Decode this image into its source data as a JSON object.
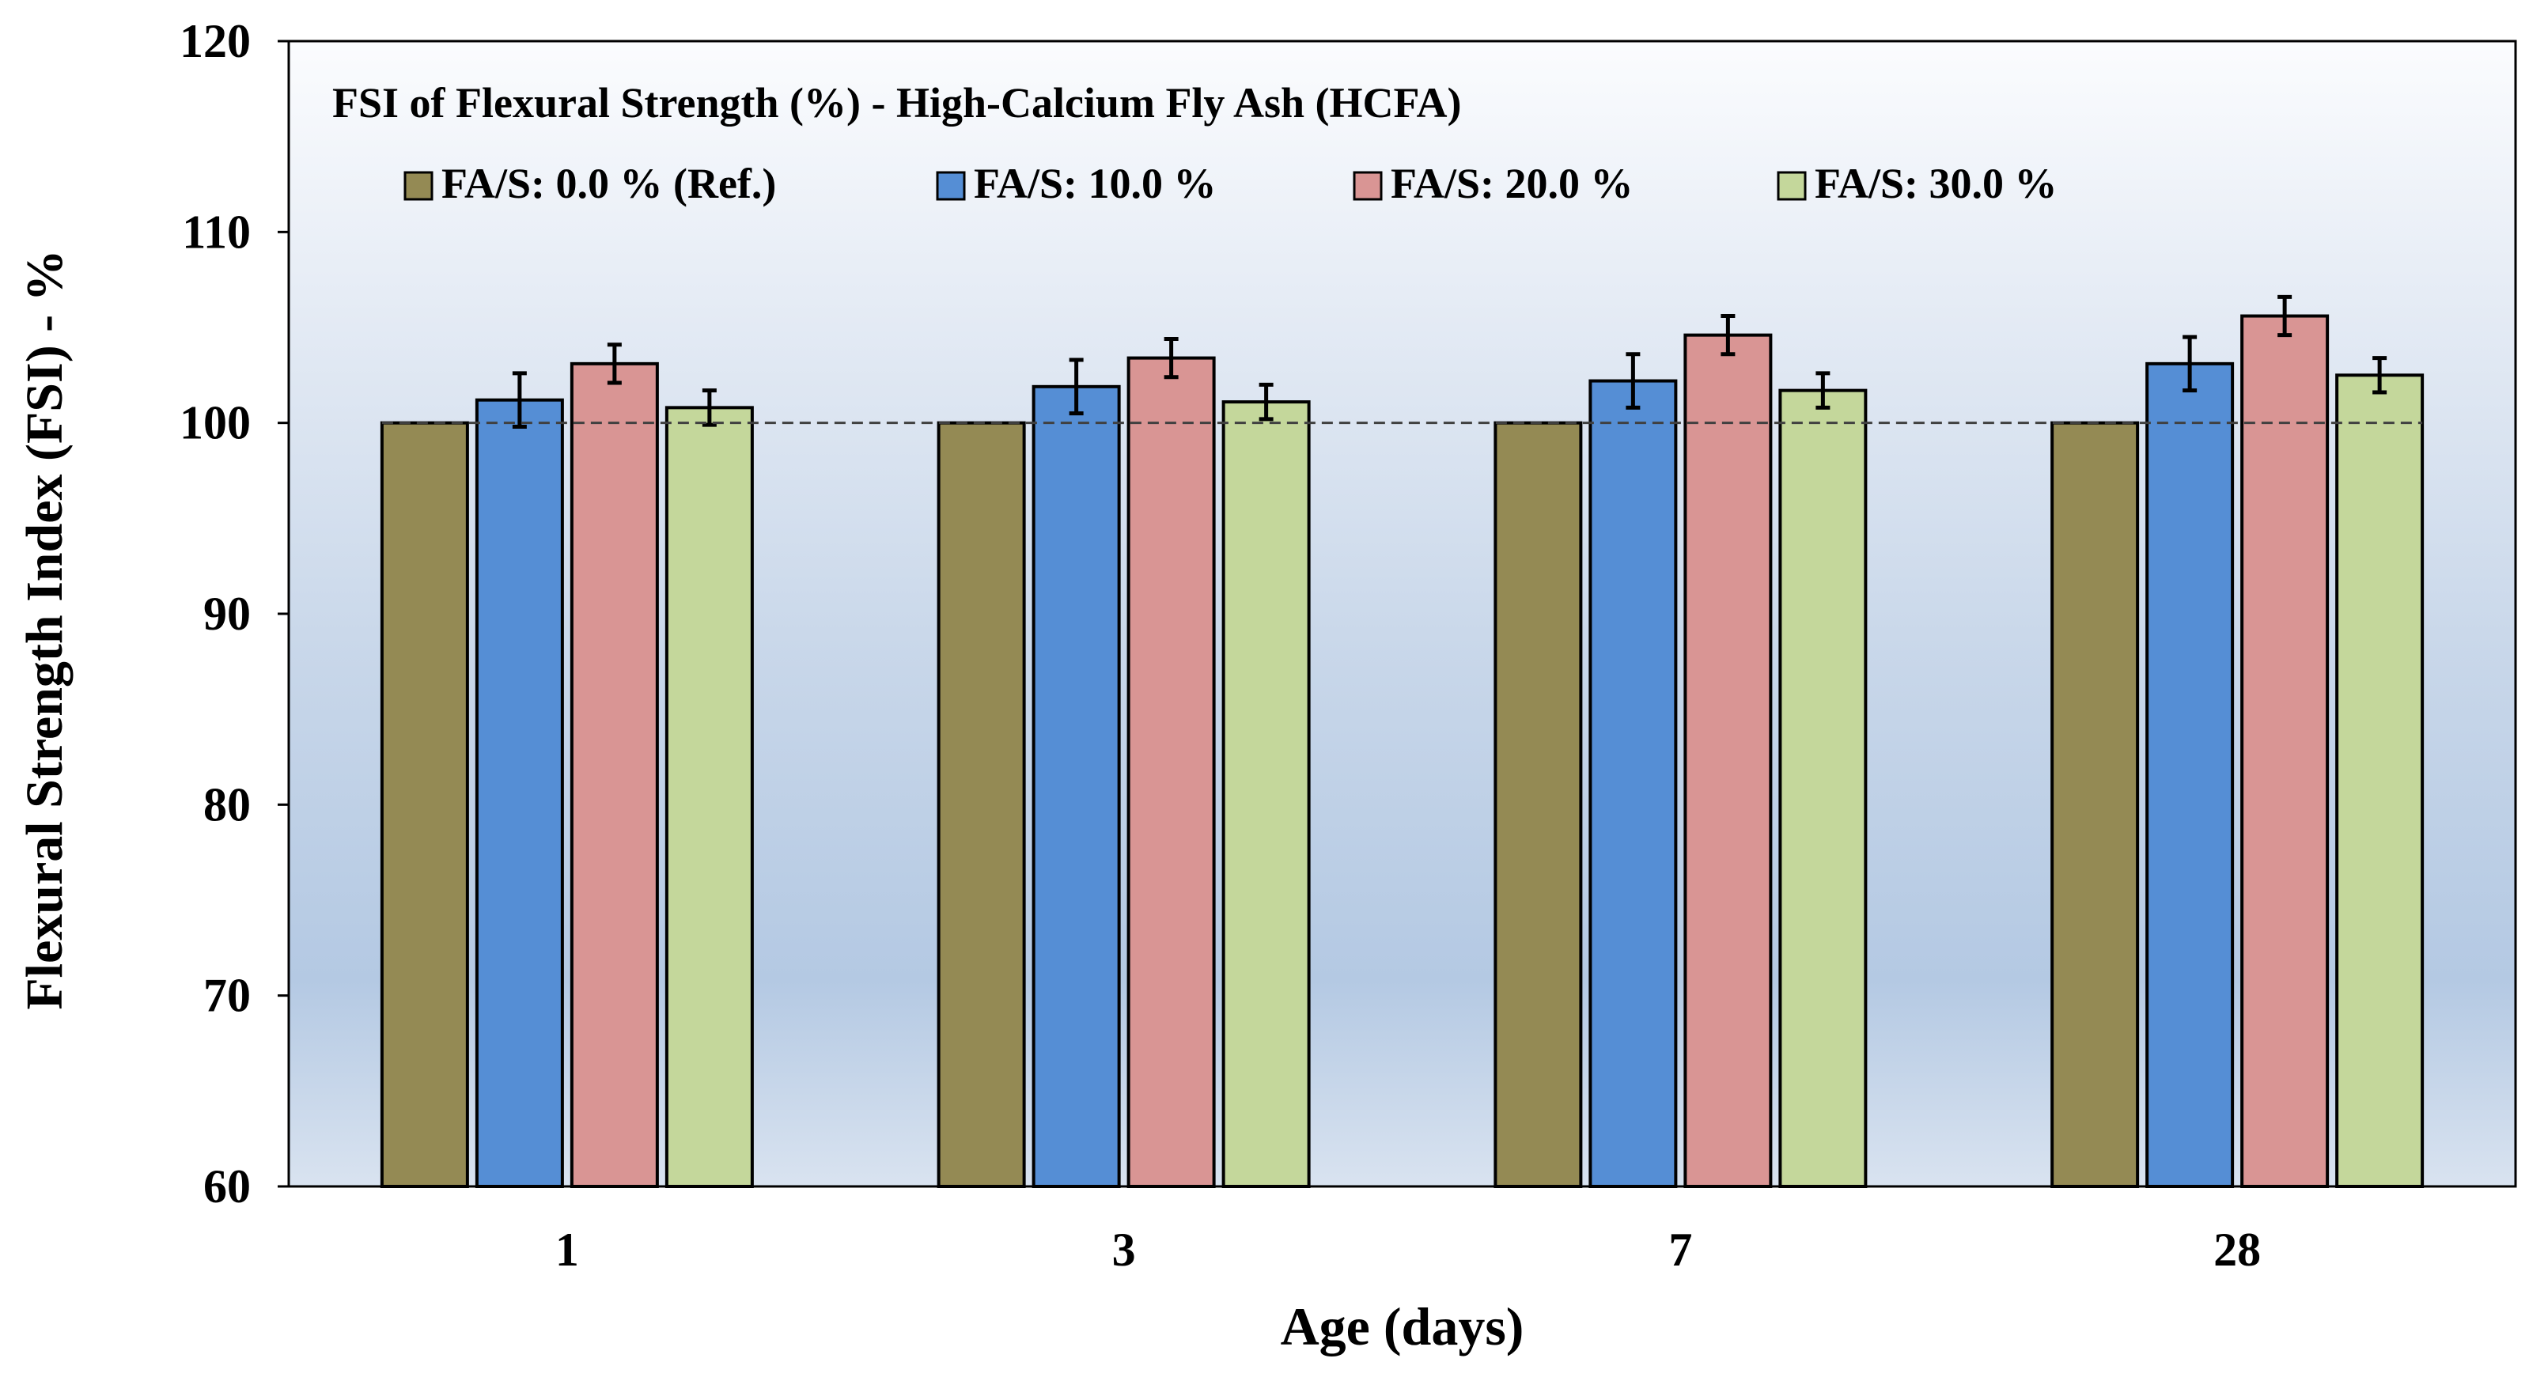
{
  "chart_data": {
    "type": "bar",
    "title": "FSI of Flexural Strength (%) - High-Calcium Fly Ash (HCFA)",
    "xlabel": "Age (days)",
    "ylabel": "Flexural Strength Index (FSI) - %",
    "categories": [
      "1",
      "3",
      "7",
      "28"
    ],
    "ylim": [
      60,
      120
    ],
    "yticks": [
      60,
      70,
      80,
      90,
      100,
      110,
      120
    ],
    "reference_line": 100,
    "grid": false,
    "legend_position": "top",
    "series": [
      {
        "name": "FA/S: 0.0 % (Ref.)",
        "color": "#948A54",
        "values": [
          100,
          100,
          100,
          100
        ],
        "errors": [
          0,
          0,
          0,
          0
        ]
      },
      {
        "name": "FA/S: 10.0 %",
        "color": "#558ED5",
        "values": [
          101.2,
          101.9,
          102.2,
          103.1
        ],
        "errors": [
          1.4,
          1.4,
          1.4,
          1.4
        ]
      },
      {
        "name": "FA/S: 20.0 %",
        "color": "#D99594",
        "values": [
          103.1,
          103.4,
          104.6,
          105.6
        ],
        "errors": [
          1.0,
          1.0,
          1.0,
          1.0
        ]
      },
      {
        "name": "FA/S: 30.0 %",
        "color": "#C4D79B",
        "values": [
          100.8,
          101.1,
          101.7,
          102.5
        ],
        "errors": [
          0.9,
          0.9,
          0.9,
          0.9
        ]
      }
    ]
  }
}
